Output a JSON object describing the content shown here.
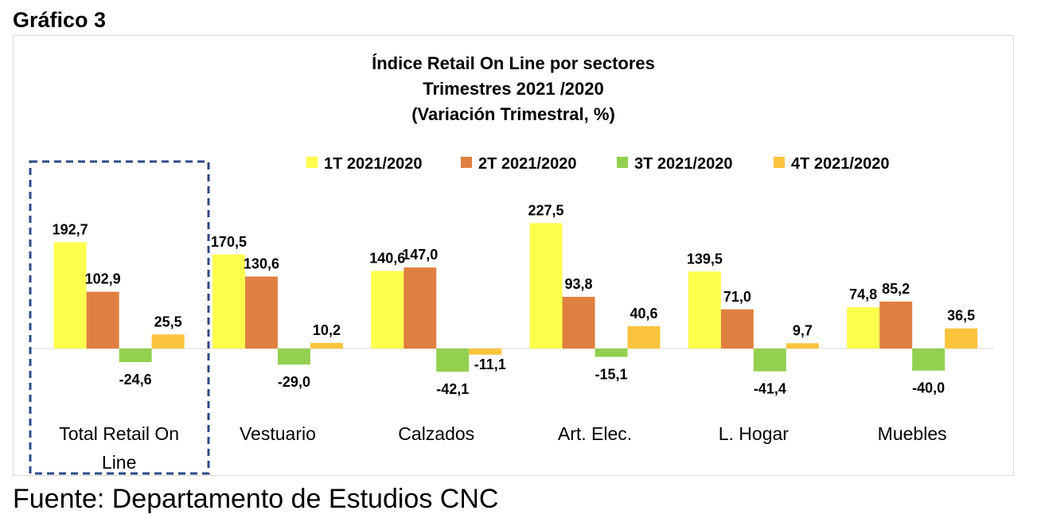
{
  "figure_label": "Gráfico 3",
  "source_note": "Fuente: Departamento de Estudios CNC",
  "colors": {
    "series": [
      "#ffff4d",
      "#e08040",
      "#92d050",
      "#fcc43c"
    ],
    "highlight_border": "#2f4a87"
  },
  "chart_data": {
    "type": "bar",
    "title": [
      "Índice Retail On Line por sectores",
      "Trimestres 2021 /2020",
      "(Variación Trimestral, %)"
    ],
    "xlabel": "",
    "ylabel": "",
    "legend_position": "top",
    "grid": false,
    "ylim": [
      -60,
      260
    ],
    "categories": [
      "Total Retail On Line",
      "Vestuario",
      "Calzados",
      "Art. Elec.",
      "L. Hogar",
      "Muebles"
    ],
    "highlighted_category": "Total Retail On Line",
    "series": [
      {
        "name": "1T 2021/2020",
        "values": [
          192.7,
          170.5,
          140.6,
          227.5,
          139.5,
          74.8
        ],
        "labels": [
          "192,7",
          "170,5",
          "140,6",
          "227,5",
          "139,5",
          "74,8"
        ]
      },
      {
        "name": "2T 2021/2020",
        "values": [
          102.9,
          130.6,
          147.0,
          93.8,
          71.0,
          85.2
        ],
        "labels": [
          "102,9",
          "130,6",
          "147,0",
          "93,8",
          "71,0",
          "85,2"
        ]
      },
      {
        "name": "3T 2021/2020",
        "values": [
          -24.6,
          -29.0,
          -42.1,
          -15.1,
          -41.4,
          -40.0
        ],
        "labels": [
          "-24,6",
          "-29,0",
          "-42,1",
          "-15,1",
          "-41,4",
          "-40,0"
        ]
      },
      {
        "name": "4T 2021/2020",
        "values": [
          25.5,
          10.2,
          -11.1,
          40.6,
          9.7,
          36.5
        ],
        "labels": [
          "25,5",
          "10,2",
          "-11,1",
          "40,6",
          "9,7",
          "36,5"
        ]
      }
    ]
  }
}
